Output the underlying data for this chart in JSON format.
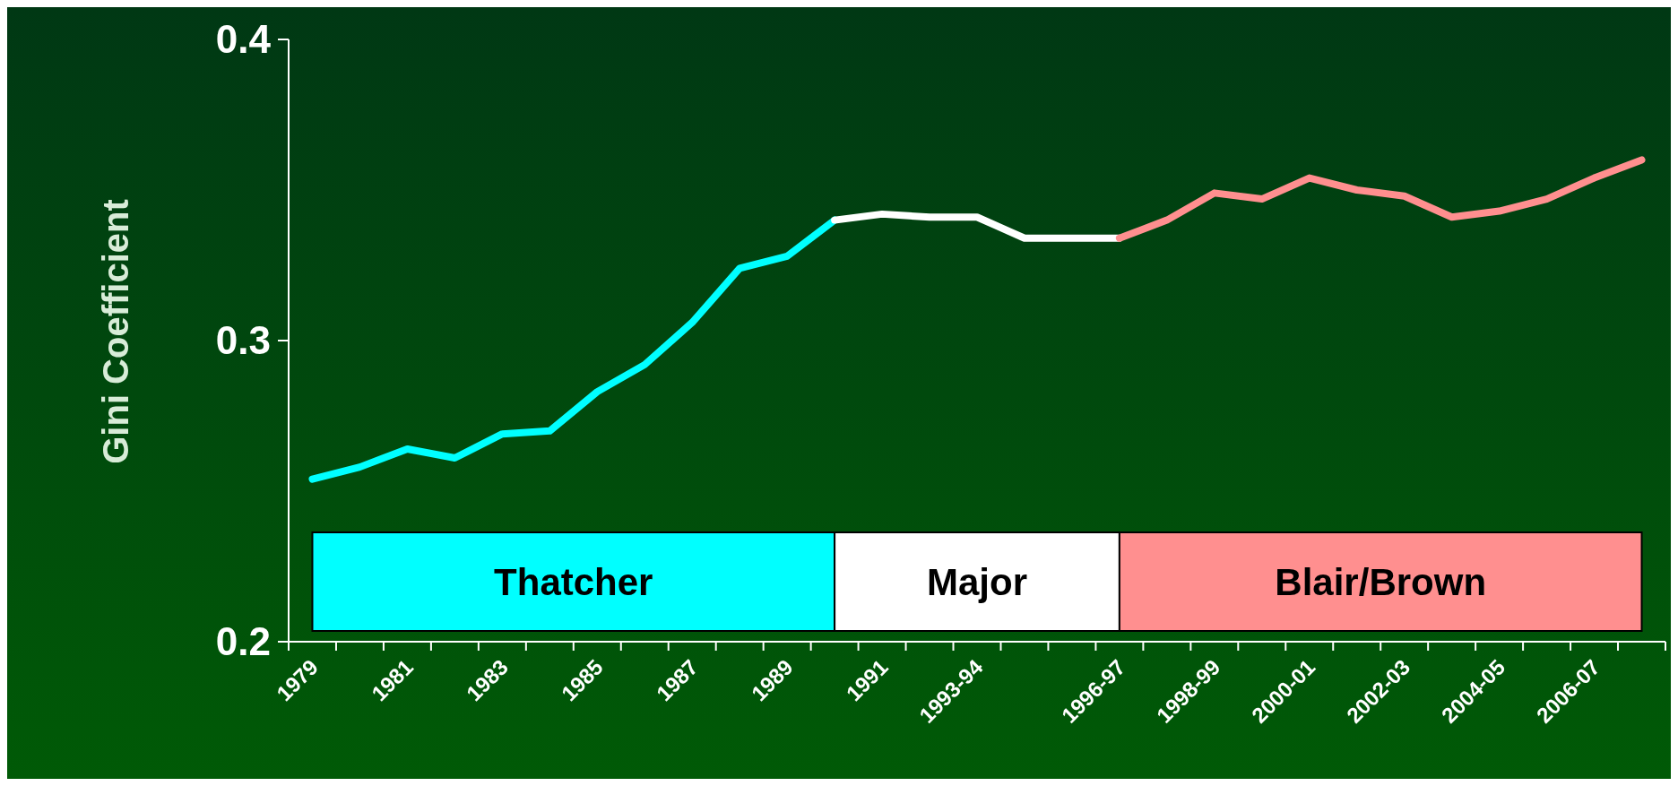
{
  "chart_data": {
    "type": "line",
    "ylabel": "Gini Coefficient",
    "categories": [
      "1979",
      null,
      "1981",
      null,
      "1983",
      null,
      "1985",
      null,
      "1987",
      null,
      "1989",
      null,
      "1991",
      null,
      "1993-94",
      null,
      null,
      "1996-97",
      null,
      "1998-99",
      null,
      "2000-01",
      null,
      "2002-03",
      null,
      "2004-05",
      null,
      "2006-07",
      null
    ],
    "series": [
      {
        "name": "Thatcher",
        "color": "#00ffff",
        "values": [
          0.254,
          0.258,
          0.264,
          0.261,
          0.269,
          0.27,
          0.283,
          0.292,
          0.306,
          0.324,
          0.328,
          0.34,
          null,
          null,
          null,
          null,
          null,
          null,
          null,
          null,
          null,
          null,
          null,
          null,
          null,
          null,
          null,
          null,
          null
        ]
      },
      {
        "name": "Major",
        "color": "#ffffff",
        "values": [
          null,
          null,
          null,
          null,
          null,
          null,
          null,
          null,
          null,
          null,
          null,
          0.34,
          0.342,
          0.341,
          0.341,
          0.334,
          0.334,
          0.334,
          null,
          null,
          null,
          null,
          null,
          null,
          null,
          null,
          null,
          null,
          null
        ]
      },
      {
        "name": "Blair/Brown",
        "color": "#ff8f8f",
        "values": [
          null,
          null,
          null,
          null,
          null,
          null,
          null,
          null,
          null,
          null,
          null,
          null,
          null,
          null,
          null,
          null,
          null,
          0.334,
          0.34,
          0.349,
          0.347,
          0.354,
          0.35,
          0.348,
          0.341,
          0.343,
          0.347,
          0.354,
          0.36
        ]
      }
    ],
    "ylim": [
      0.2,
      0.4
    ],
    "yticks": [
      0.2,
      0.3,
      0.4
    ],
    "legend": "bottom",
    "grid": false
  }
}
